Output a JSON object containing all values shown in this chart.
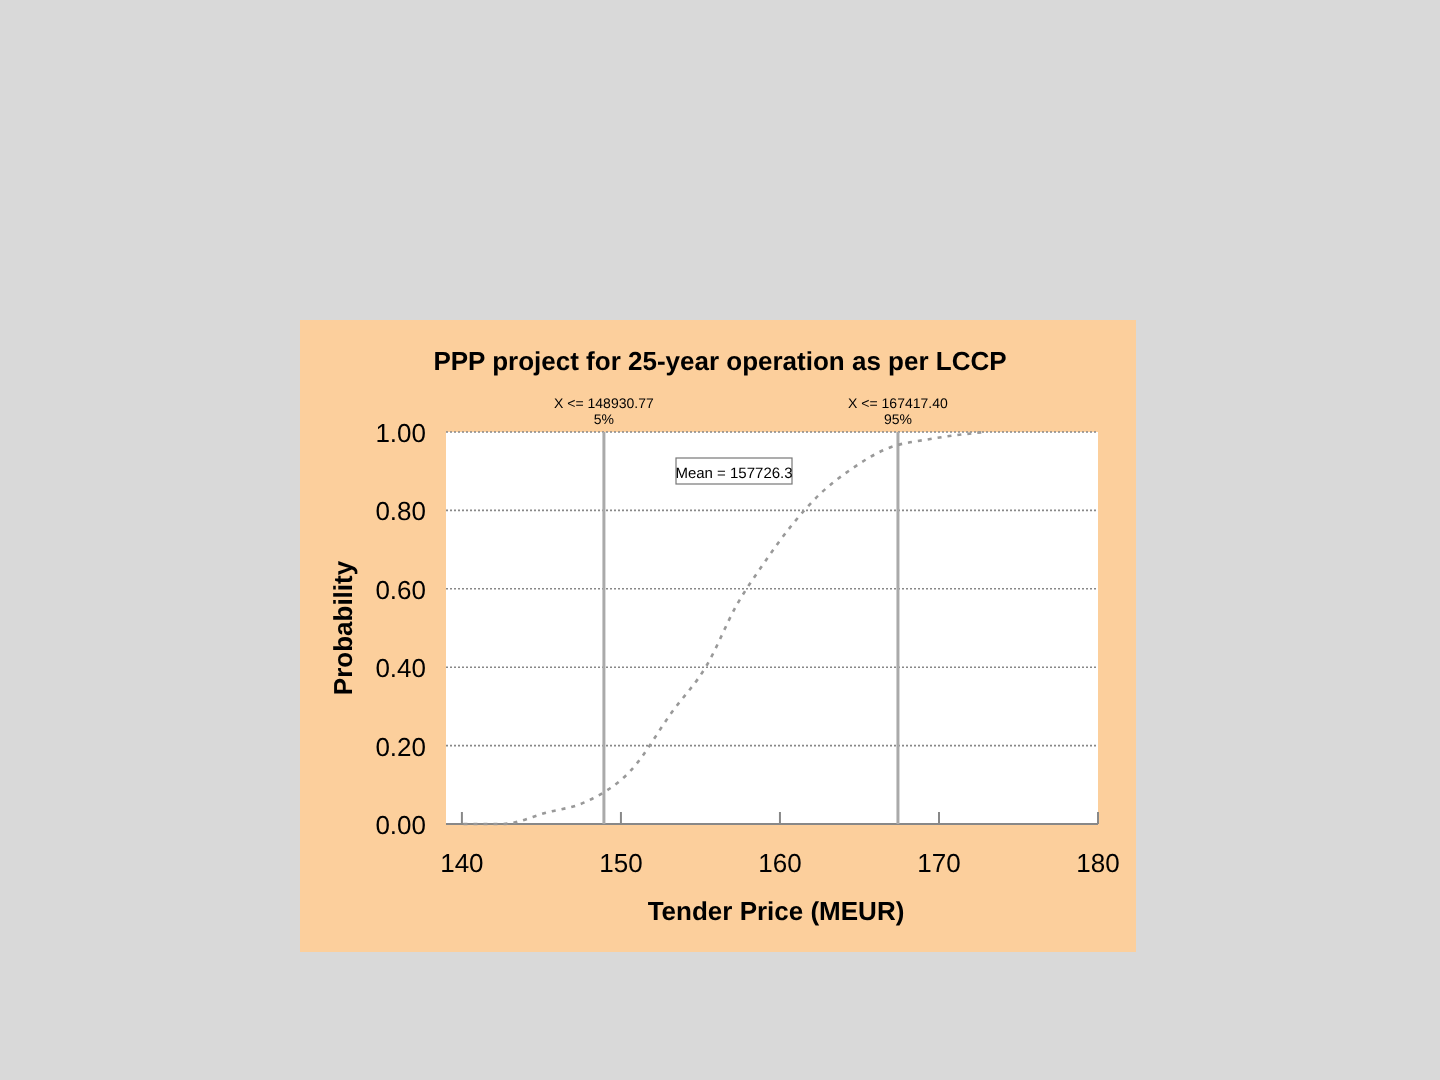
{
  "chart_data": {
    "type": "line",
    "title": "PPP project for 25-year operation as per LCCP",
    "xlabel": "Tender Price (MEUR)",
    "ylabel": "Probability",
    "x": [
      140.1,
      142.5,
      145.4,
      147.7,
      150.7,
      153.2,
      155.4,
      157.3,
      158.9,
      160.8,
      162.6,
      164.3,
      166.7,
      169.6,
      172.9
    ],
    "series": [
      {
        "color": "#999999",
        "values": [
          0,
          0,
          0.03,
          0.055,
          0.14,
          0.285,
          0.405,
          0.56,
          0.66,
          0.765,
          0.845,
          0.9,
          0.957,
          0.983,
          1.0
        ]
      }
    ],
    "line_style": "dotted",
    "marker": "none",
    "grid": "y",
    "xlim": [
      139,
      180
    ],
    "xticks": [
      140,
      150,
      160,
      170,
      180
    ],
    "ylim": [
      0,
      1
    ],
    "yticks": [
      {
        "value": 0,
        "label": "0.00"
      },
      {
        "value": 0.2,
        "label": "0.20"
      },
      {
        "value": 0.4,
        "label": "0.40"
      },
      {
        "value": 0.6,
        "label": "0.60"
      },
      {
        "value": 0.8,
        "label": "0.80"
      },
      {
        "value": 1,
        "label": "1.00"
      }
    ],
    "ref_lines": [
      {
        "axis": "x",
        "value": 148.93,
        "color": "#aaaaaa"
      },
      {
        "axis": "x",
        "value": 167.42,
        "color": "#aaaaaa"
      }
    ],
    "annotations": [
      "X <= 148930.77",
      "5%",
      "X <= 167417.40",
      "95%",
      "Mean = 157726.3"
    ]
  }
}
